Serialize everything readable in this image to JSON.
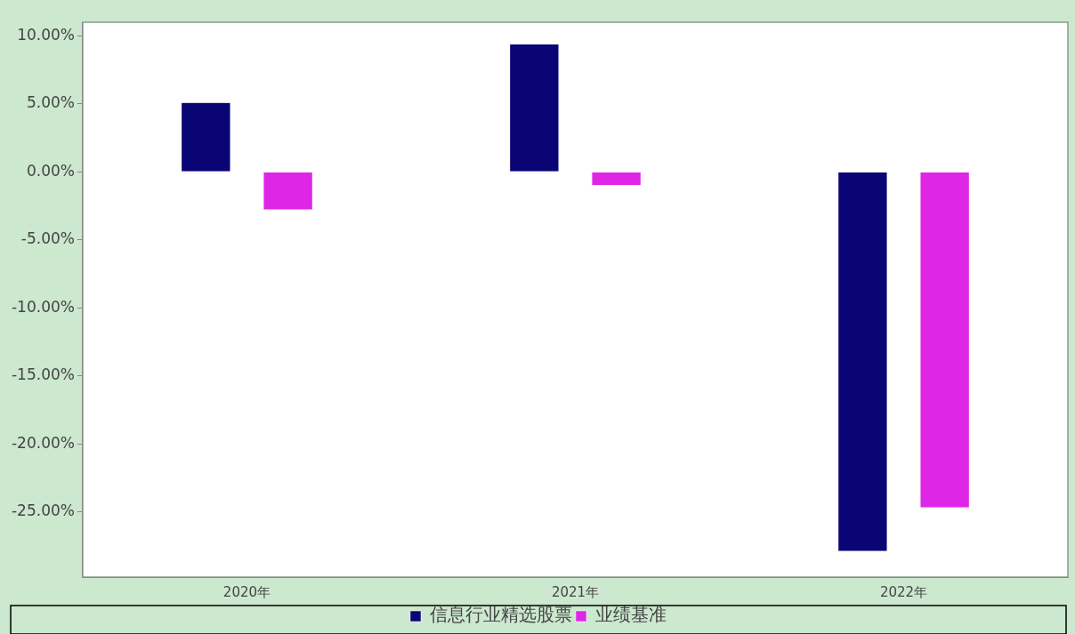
{
  "chart_data": {
    "type": "bar",
    "categories": [
      "2020年",
      "2021年",
      "2022年"
    ],
    "series": [
      {
        "name": "信息行业精选股票",
        "color": "#0a0575",
        "values": [
          5.1,
          9.4,
          -27.9
        ]
      },
      {
        "name": "业绩基准",
        "color": "#df25e6",
        "values": [
          -2.8,
          -1.0,
          -24.7
        ]
      }
    ],
    "ylim": [
      -29.8,
      11
    ],
    "yticks": [
      {
        "value": 10,
        "label": "10.00%"
      },
      {
        "value": 5,
        "label": "5.00%"
      },
      {
        "value": 0,
        "label": "0.00%"
      },
      {
        "value": -5,
        "label": "-5.00%"
      },
      {
        "value": -10,
        "label": "-10.00%"
      },
      {
        "value": -15,
        "label": "-15.00%"
      },
      {
        "value": -20,
        "label": "-20.00%"
      },
      {
        "value": -25,
        "label": "-25.00%"
      }
    ],
    "grid": false,
    "legend": "bottom"
  }
}
